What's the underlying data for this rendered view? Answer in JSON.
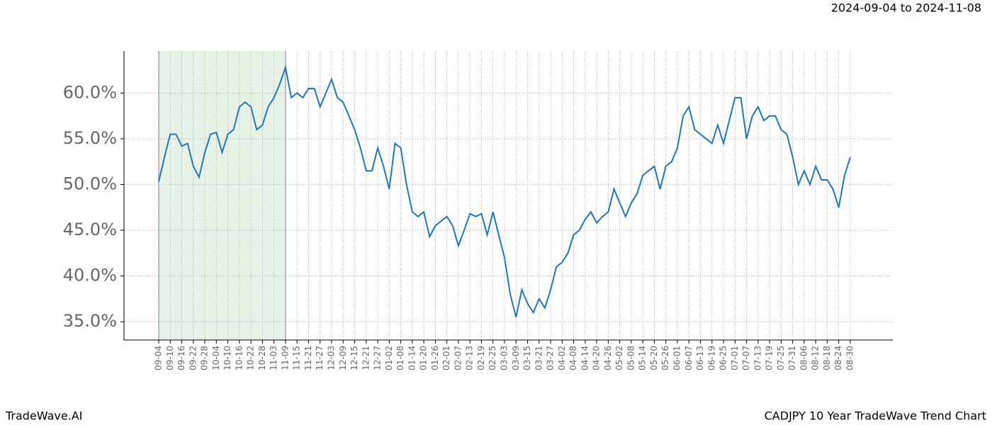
{
  "chart_data": {
    "type": "line",
    "title": "2024-09-04 to 2024-11-08",
    "footer_left": "TradeWave.AI",
    "footer_right": "CADJPY 10 Year TradeWave Trend Chart",
    "categories": [
      "09-04",
      null,
      "09-10",
      null,
      "09-16",
      null,
      "09-22",
      null,
      "09-28",
      null,
      "10-04",
      null,
      "10-10",
      null,
      "10-16",
      null,
      "10-22",
      null,
      "10-28",
      null,
      "11-03",
      null,
      "11-09",
      null,
      "11-15",
      null,
      "11-21",
      null,
      "11-27",
      null,
      "12-03",
      null,
      "12-09",
      null,
      "12-15",
      null,
      "12-21",
      null,
      "12-27",
      null,
      "01-02",
      null,
      "01-08",
      null,
      "01-14",
      null,
      "01-20",
      null,
      "01-26",
      null,
      "02-01",
      null,
      "02-07",
      null,
      "02-13",
      null,
      "02-19",
      null,
      "02-25",
      null,
      "03-03",
      null,
      "03-09",
      null,
      "03-15",
      null,
      "03-21",
      null,
      "03-27",
      null,
      "04-02",
      null,
      "04-08",
      null,
      "04-14",
      null,
      "04-20",
      null,
      "04-26",
      null,
      "05-02",
      null,
      "05-08",
      null,
      "05-14",
      null,
      "05-20",
      null,
      "05-26",
      null,
      "06-01",
      null,
      "06-07",
      null,
      "06-13",
      null,
      "06-19",
      null,
      "06-25",
      null,
      "07-01",
      null,
      "07-07",
      null,
      "07-13",
      null,
      "07-19",
      null,
      "07-25",
      null,
      "07-31",
      null,
      "08-06",
      null,
      "08-12",
      null,
      "08-18",
      null,
      "08-24",
      null,
      "08-30"
    ],
    "series": [
      {
        "color": "#1f77b4",
        "values": [
          50.3,
          53,
          55.5,
          55.5,
          54.2,
          54.5,
          52,
          50.8,
          53.5,
          55.5,
          55.7,
          53.5,
          55.5,
          56,
          58.5,
          59,
          58.5,
          56,
          56.5,
          58.5,
          59.5,
          61,
          62.8,
          59.5,
          60,
          59.5,
          60.5,
          60.5,
          58.5,
          60,
          61.5,
          59.5,
          59,
          57.5,
          56,
          54,
          51.5,
          51.5,
          54,
          52,
          49.5,
          54.5,
          54,
          50,
          47,
          46.5,
          47,
          44.3,
          45.5,
          46,
          46.5,
          45.5,
          43.3,
          45,
          46.8,
          46.5,
          46.8,
          44.5,
          47,
          44.5,
          42,
          38,
          35.5,
          38.5,
          37,
          36,
          37.5,
          36.5,
          38.5,
          41,
          41.5,
          42.5,
          44.5,
          45,
          46.2,
          47,
          45.8,
          46.5,
          47,
          49.5,
          48,
          46.5,
          48,
          49,
          51,
          51.5,
          52,
          49.5,
          52,
          52.5,
          54,
          57.5,
          58.5,
          56,
          55.5,
          55,
          54.5,
          56.5,
          54.5,
          57,
          59.5,
          59.5,
          55,
          57.5,
          58.5,
          57,
          57.5,
          57.5,
          56,
          55.5,
          53,
          50,
          51.5,
          50,
          52,
          50.5,
          50.5,
          49.5,
          47.5,
          51,
          53
        ]
      }
    ],
    "ylim": [
      33,
      64.6
    ],
    "yticks": [
      {
        "value": 35,
        "label": "35.0%"
      },
      {
        "value": 40,
        "label": "40.0%"
      },
      {
        "value": 45,
        "label": "45.0%"
      },
      {
        "value": 50,
        "label": "50.0%"
      },
      {
        "value": 55,
        "label": "55.0%"
      },
      {
        "value": 60,
        "label": "60.0%"
      }
    ],
    "grid": true,
    "highlight_range": {
      "start": "09-04",
      "end": "11-09",
      "color": "#e6f2e6"
    }
  }
}
